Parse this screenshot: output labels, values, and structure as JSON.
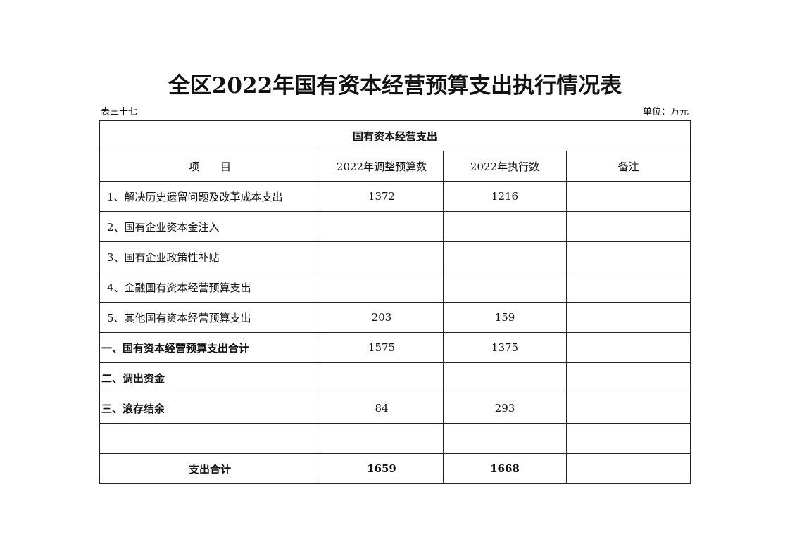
{
  "document": {
    "title": "全区2022年国有资本经营预算支出执行情况表",
    "table_number": "表三十七",
    "unit": "单位：万元"
  },
  "table": {
    "section_header": "国有资本经营支出",
    "columns": [
      "项　　目",
      "2022年调整预算数",
      "2022年执行数",
      "备注"
    ],
    "rows": [
      {
        "item": "1、解决历史遗留问题及改革成本支出",
        "budget": "1372",
        "actual": "1216",
        "note": "",
        "bold": false
      },
      {
        "item": "2、国有企业资本金注入",
        "budget": "",
        "actual": "",
        "note": "",
        "bold": false
      },
      {
        "item": "3、国有企业政策性补贴",
        "budget": "",
        "actual": "",
        "note": "",
        "bold": false
      },
      {
        "item": "4、金融国有资本经营预算支出",
        "budget": "",
        "actual": "",
        "note": "",
        "bold": false
      },
      {
        "item": "5、其他国有资本经营预算支出",
        "budget": "203",
        "actual": "159",
        "note": "",
        "bold": false
      },
      {
        "item": "一、国有资本经营预算支出合计",
        "budget": "1575",
        "actual": "1375",
        "note": "",
        "bold": true
      },
      {
        "item": "二、调出资金",
        "budget": "",
        "actual": "",
        "note": "",
        "bold": true
      },
      {
        "item": "三、滚存结余",
        "budget": "84",
        "actual": "293",
        "note": "",
        "bold": true
      },
      {
        "item": "",
        "budget": "",
        "actual": "",
        "note": "",
        "bold": false
      }
    ],
    "total": {
      "item": "支出合计",
      "budget": "1659",
      "actual": "1668",
      "note": ""
    }
  }
}
